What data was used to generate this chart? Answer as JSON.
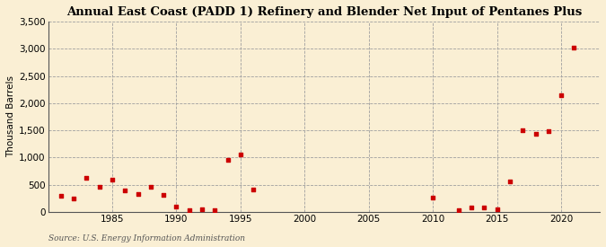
{
  "title": "Annual East Coast (PADD 1) Refinery and Blender Net Input of Pentanes Plus",
  "ylabel": "Thousand Barrels",
  "source": "Source: U.S. Energy Information Administration",
  "background_color": "#faefd4",
  "marker_color": "#cc0000",
  "years": [
    1981,
    1982,
    1983,
    1984,
    1985,
    1986,
    1987,
    1988,
    1989,
    1990,
    1991,
    1992,
    1993,
    1994,
    1995,
    1996,
    2010,
    2012,
    2013,
    2014,
    2015,
    2016,
    2017,
    2018,
    2019,
    2020,
    2021
  ],
  "values": [
    290,
    240,
    630,
    460,
    590,
    400,
    330,
    470,
    320,
    100,
    40,
    50,
    30,
    950,
    1060,
    420,
    260,
    30,
    80,
    80,
    50,
    560,
    1500,
    1430,
    1490,
    2150,
    3020
  ],
  "ylim": [
    0,
    3500
  ],
  "xlim": [
    1980,
    2023
  ],
  "yticks": [
    0,
    500,
    1000,
    1500,
    2000,
    2500,
    3000,
    3500
  ],
  "xticks": [
    1985,
    1990,
    1995,
    2000,
    2005,
    2010,
    2015,
    2020
  ]
}
